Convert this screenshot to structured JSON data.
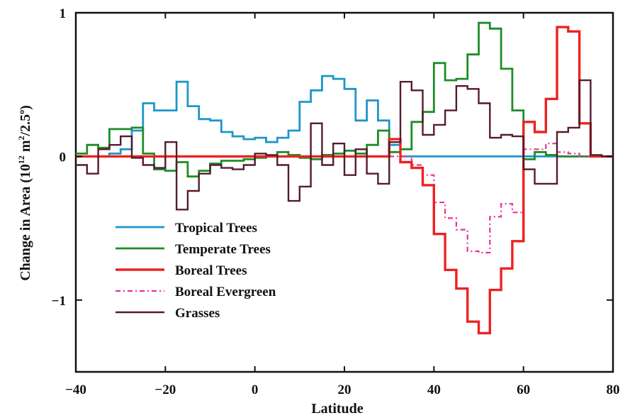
{
  "chart_data": {
    "type": "line",
    "step": true,
    "xlabel": "Latitude",
    "ylabel": "Change in Area (10",
    "ylabel_exp1": "12",
    "ylabel_mid": " m",
    "ylabel_exp2": "2",
    "ylabel_end": "/2.5",
    "ylabel_exp3": "o",
    "ylabel_close": ")",
    "xlim": [
      -40,
      80
    ],
    "ylim": [
      -1.5,
      1.0
    ],
    "xticks": [
      -40,
      -20,
      0,
      20,
      40,
      60,
      80
    ],
    "yticks": [
      -1,
      0,
      1
    ],
    "legend_position": "lower-left",
    "x_edges": [
      -40,
      -37.5,
      -35,
      -32.5,
      -30,
      -27.5,
      -25,
      -22.5,
      -20,
      -17.5,
      -15,
      -12.5,
      -10,
      -7.5,
      -5,
      -2.5,
      0,
      2.5,
      5,
      7.5,
      10,
      12.5,
      15,
      17.5,
      20,
      22.5,
      25,
      27.5,
      30,
      32.5,
      35,
      37.5,
      40,
      42.5,
      45,
      47.5,
      50,
      52.5,
      55,
      57.5,
      60,
      62.5,
      65,
      67.5,
      70,
      72.5,
      75,
      77.5,
      80
    ],
    "series": [
      {
        "name": "Tropical Trees",
        "color": "#1e96c8",
        "dash": "",
        "width": 2.8,
        "values": [
          0,
          0,
          0,
          0.02,
          0.05,
          0.18,
          0.37,
          0.32,
          0.32,
          0.52,
          0.35,
          0.26,
          0.25,
          0.17,
          0.14,
          0.12,
          0.13,
          0.1,
          0.13,
          0.18,
          0.38,
          0.46,
          0.56,
          0.54,
          0.47,
          0.25,
          0.39,
          0.25,
          0.08,
          0,
          0,
          0,
          0,
          0,
          0,
          0,
          0,
          0,
          0,
          0,
          0,
          0,
          0,
          0,
          0,
          0,
          0,
          0
        ]
      },
      {
        "name": "Temperate Trees",
        "color": "#1e8c2a",
        "dash": "",
        "width": 2.8,
        "values": [
          0.02,
          0.08,
          0.06,
          0.19,
          0.19,
          0.2,
          0.02,
          -0.09,
          -0.1,
          -0.04,
          -0.14,
          -0.1,
          -0.05,
          -0.03,
          -0.03,
          -0.02,
          -0.01,
          0,
          0.03,
          0.01,
          -0.01,
          -0.02,
          0.01,
          0.02,
          0.04,
          0.02,
          0.08,
          0.18,
          0.03,
          0.05,
          0.24,
          0.31,
          0.65,
          0.53,
          0.54,
          0.71,
          0.93,
          0.89,
          0.61,
          0.32,
          -0.02,
          0.03,
          0.01,
          0,
          0,
          0,
          0,
          0
        ]
      },
      {
        "name": "Boreal Trees",
        "color": "#ec2222",
        "dash": "",
        "width": 3.4,
        "values": [
          0,
          0,
          0,
          0,
          0,
          0,
          0,
          0,
          0,
          0,
          0,
          0,
          0,
          0,
          0,
          0,
          0,
          0,
          0,
          0,
          0,
          0,
          0,
          0,
          0,
          0,
          0,
          0,
          0.12,
          -0.04,
          -0.08,
          -0.2,
          -0.54,
          -0.79,
          -0.92,
          -1.15,
          -1.23,
          -0.93,
          -0.78,
          -0.59,
          0.24,
          0.17,
          0.4,
          0.9,
          0.87,
          0.23,
          0,
          0
        ]
      },
      {
        "name": "Boreal Evergreen",
        "color": "#e6349a",
        "dash": "7 4 2 4",
        "width": 2.2,
        "values": [
          0,
          0,
          0,
          0,
          0,
          0,
          0,
          0,
          0,
          0,
          0,
          0,
          0,
          0,
          0,
          0,
          0,
          0,
          0,
          0,
          0,
          0,
          0,
          0,
          0,
          0,
          0,
          0,
          0,
          0,
          -0.06,
          -0.13,
          -0.32,
          -0.43,
          -0.51,
          -0.66,
          -0.67,
          -0.42,
          -0.33,
          -0.39,
          0.05,
          0.05,
          0.09,
          0.03,
          0.02,
          0,
          0,
          0
        ]
      },
      {
        "name": "Grasses",
        "color": "#551c2e",
        "dash": "",
        "width": 2.4,
        "values": [
          -0.06,
          -0.12,
          0.05,
          0.08,
          0.14,
          -0.01,
          -0.06,
          -0.08,
          0.1,
          -0.37,
          -0.24,
          -0.12,
          -0.06,
          -0.08,
          -0.09,
          -0.06,
          0.02,
          0.01,
          -0.06,
          -0.31,
          -0.21,
          0.23,
          -0.06,
          0.09,
          -0.13,
          0.05,
          -0.12,
          -0.19,
          0.1,
          0.52,
          0.46,
          0.15,
          0.22,
          0.32,
          0.49,
          0.47,
          0.37,
          0.13,
          0.15,
          0.14,
          -0.09,
          -0.19,
          -0.19,
          0.17,
          0.2,
          0.53,
          0.01,
          0
        ]
      }
    ]
  }
}
